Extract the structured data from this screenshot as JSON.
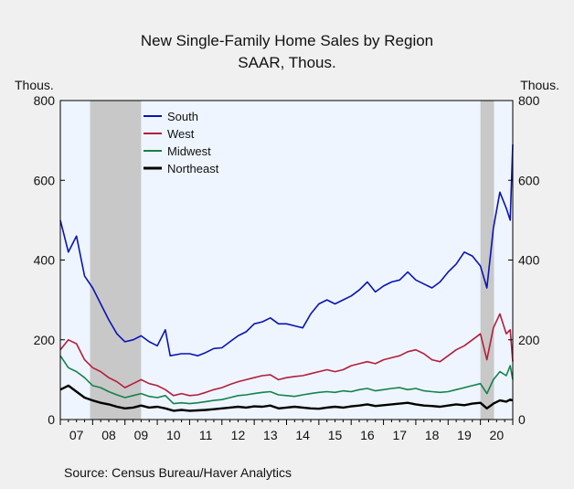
{
  "chart_data": {
    "type": "line",
    "title": "New Single-Family Home Sales by Region",
    "subtitle": "SAAR, Thous.",
    "ylabel_left": "Thous.",
    "ylabel_right": "Thous.",
    "source": "Source:  Census Bureau/Haver Analytics",
    "ylim": [
      0,
      800
    ],
    "yticks": [
      0,
      200,
      400,
      600,
      800
    ],
    "xlim": [
      2007.0,
      2021.0
    ],
    "x_tick_labels": [
      "07",
      "08",
      "09",
      "10",
      "11",
      "12",
      "13",
      "14",
      "15",
      "16",
      "17",
      "18",
      "19",
      "20"
    ],
    "recessions": [
      [
        2007.92,
        2009.5
      ],
      [
        2020.0,
        2020.42
      ]
    ],
    "legend_position": "top-left",
    "plot_background": "#eef5ff",
    "recession_color": "#c8c8c8",
    "series": [
      {
        "name": "South",
        "color": "#0a14b4",
        "points": [
          [
            2007.0,
            500
          ],
          [
            2007.25,
            420
          ],
          [
            2007.5,
            460
          ],
          [
            2007.75,
            360
          ],
          [
            2008.0,
            330
          ],
          [
            2008.25,
            290
          ],
          [
            2008.5,
            250
          ],
          [
            2008.75,
            215
          ],
          [
            2009.0,
            195
          ],
          [
            2009.25,
            200
          ],
          [
            2009.5,
            210
          ],
          [
            2009.75,
            195
          ],
          [
            2010.0,
            185
          ],
          [
            2010.25,
            225
          ],
          [
            2010.4,
            160
          ],
          [
            2010.75,
            165
          ],
          [
            2011.0,
            165
          ],
          [
            2011.25,
            160
          ],
          [
            2011.5,
            168
          ],
          [
            2011.75,
            178
          ],
          [
            2012.0,
            180
          ],
          [
            2012.25,
            195
          ],
          [
            2012.5,
            210
          ],
          [
            2012.75,
            220
          ],
          [
            2013.0,
            240
          ],
          [
            2013.25,
            245
          ],
          [
            2013.5,
            255
          ],
          [
            2013.75,
            240
          ],
          [
            2014.0,
            240
          ],
          [
            2014.25,
            235
          ],
          [
            2014.5,
            230
          ],
          [
            2014.75,
            265
          ],
          [
            2015.0,
            290
          ],
          [
            2015.25,
            300
          ],
          [
            2015.5,
            290
          ],
          [
            2015.75,
            300
          ],
          [
            2016.0,
            310
          ],
          [
            2016.25,
            325
          ],
          [
            2016.5,
            345
          ],
          [
            2016.75,
            320
          ],
          [
            2017.0,
            335
          ],
          [
            2017.25,
            345
          ],
          [
            2017.5,
            350
          ],
          [
            2017.75,
            370
          ],
          [
            2018.0,
            350
          ],
          [
            2018.25,
            340
          ],
          [
            2018.5,
            330
          ],
          [
            2018.75,
            345
          ],
          [
            2019.0,
            370
          ],
          [
            2019.25,
            390
          ],
          [
            2019.5,
            420
          ],
          [
            2019.75,
            410
          ],
          [
            2020.0,
            385
          ],
          [
            2020.2,
            330
          ],
          [
            2020.4,
            480
          ],
          [
            2020.6,
            570
          ],
          [
            2020.8,
            530
          ],
          [
            2020.92,
            500
          ],
          [
            2021.0,
            690
          ]
        ]
      },
      {
        "name": "West",
        "color": "#b41e3c",
        "points": [
          [
            2007.0,
            175
          ],
          [
            2007.25,
            200
          ],
          [
            2007.5,
            190
          ],
          [
            2007.75,
            150
          ],
          [
            2008.0,
            130
          ],
          [
            2008.25,
            120
          ],
          [
            2008.5,
            105
          ],
          [
            2008.75,
            95
          ],
          [
            2009.0,
            80
          ],
          [
            2009.25,
            90
          ],
          [
            2009.5,
            100
          ],
          [
            2009.75,
            90
          ],
          [
            2010.0,
            85
          ],
          [
            2010.25,
            75
          ],
          [
            2010.5,
            60
          ],
          [
            2010.75,
            65
          ],
          [
            2011.0,
            60
          ],
          [
            2011.25,
            62
          ],
          [
            2011.5,
            68
          ],
          [
            2011.75,
            75
          ],
          [
            2012.0,
            80
          ],
          [
            2012.25,
            88
          ],
          [
            2012.5,
            95
          ],
          [
            2012.75,
            100
          ],
          [
            2013.0,
            105
          ],
          [
            2013.25,
            110
          ],
          [
            2013.5,
            112
          ],
          [
            2013.75,
            100
          ],
          [
            2014.0,
            105
          ],
          [
            2014.25,
            108
          ],
          [
            2014.5,
            110
          ],
          [
            2014.75,
            115
          ],
          [
            2015.0,
            120
          ],
          [
            2015.25,
            125
          ],
          [
            2015.5,
            120
          ],
          [
            2015.75,
            125
          ],
          [
            2016.0,
            135
          ],
          [
            2016.25,
            140
          ],
          [
            2016.5,
            145
          ],
          [
            2016.75,
            140
          ],
          [
            2017.0,
            150
          ],
          [
            2017.25,
            155
          ],
          [
            2017.5,
            160
          ],
          [
            2017.75,
            170
          ],
          [
            2018.0,
            175
          ],
          [
            2018.25,
            165
          ],
          [
            2018.5,
            150
          ],
          [
            2018.75,
            145
          ],
          [
            2019.0,
            160
          ],
          [
            2019.25,
            175
          ],
          [
            2019.5,
            185
          ],
          [
            2019.75,
            200
          ],
          [
            2020.0,
            215
          ],
          [
            2020.2,
            150
          ],
          [
            2020.4,
            230
          ],
          [
            2020.6,
            265
          ],
          [
            2020.8,
            215
          ],
          [
            2020.92,
            225
          ],
          [
            2021.0,
            145
          ]
        ]
      },
      {
        "name": "Midwest",
        "color": "#14824b",
        "points": [
          [
            2007.0,
            160
          ],
          [
            2007.25,
            130
          ],
          [
            2007.5,
            120
          ],
          [
            2007.75,
            105
          ],
          [
            2008.0,
            85
          ],
          [
            2008.25,
            80
          ],
          [
            2008.5,
            70
          ],
          [
            2008.75,
            62
          ],
          [
            2009.0,
            55
          ],
          [
            2009.25,
            60
          ],
          [
            2009.5,
            65
          ],
          [
            2009.75,
            58
          ],
          [
            2010.0,
            55
          ],
          [
            2010.25,
            60
          ],
          [
            2010.5,
            40
          ],
          [
            2010.75,
            42
          ],
          [
            2011.0,
            40
          ],
          [
            2011.25,
            42
          ],
          [
            2011.5,
            45
          ],
          [
            2011.75,
            48
          ],
          [
            2012.0,
            50
          ],
          [
            2012.25,
            55
          ],
          [
            2012.5,
            60
          ],
          [
            2012.75,
            62
          ],
          [
            2013.0,
            65
          ],
          [
            2013.25,
            68
          ],
          [
            2013.5,
            70
          ],
          [
            2013.75,
            62
          ],
          [
            2014.0,
            60
          ],
          [
            2014.25,
            58
          ],
          [
            2014.5,
            62
          ],
          [
            2014.75,
            65
          ],
          [
            2015.0,
            68
          ],
          [
            2015.25,
            70
          ],
          [
            2015.5,
            68
          ],
          [
            2015.75,
            72
          ],
          [
            2016.0,
            70
          ],
          [
            2016.25,
            75
          ],
          [
            2016.5,
            78
          ],
          [
            2016.75,
            72
          ],
          [
            2017.0,
            75
          ],
          [
            2017.25,
            78
          ],
          [
            2017.5,
            80
          ],
          [
            2017.75,
            75
          ],
          [
            2018.0,
            78
          ],
          [
            2018.25,
            72
          ],
          [
            2018.5,
            70
          ],
          [
            2018.75,
            68
          ],
          [
            2019.0,
            70
          ],
          [
            2019.25,
            75
          ],
          [
            2019.5,
            80
          ],
          [
            2019.75,
            85
          ],
          [
            2020.0,
            90
          ],
          [
            2020.2,
            65
          ],
          [
            2020.4,
            100
          ],
          [
            2020.6,
            120
          ],
          [
            2020.8,
            110
          ],
          [
            2020.92,
            135
          ],
          [
            2021.0,
            100
          ]
        ]
      },
      {
        "name": "Northeast",
        "color": "#000000",
        "points": [
          [
            2007.0,
            75
          ],
          [
            2007.25,
            85
          ],
          [
            2007.5,
            70
          ],
          [
            2007.75,
            55
          ],
          [
            2008.0,
            48
          ],
          [
            2008.25,
            42
          ],
          [
            2008.5,
            38
          ],
          [
            2008.75,
            32
          ],
          [
            2009.0,
            28
          ],
          [
            2009.25,
            30
          ],
          [
            2009.5,
            35
          ],
          [
            2009.75,
            30
          ],
          [
            2010.0,
            32
          ],
          [
            2010.25,
            28
          ],
          [
            2010.5,
            22
          ],
          [
            2010.75,
            24
          ],
          [
            2011.0,
            22
          ],
          [
            2011.25,
            23
          ],
          [
            2011.5,
            24
          ],
          [
            2011.75,
            26
          ],
          [
            2012.0,
            28
          ],
          [
            2012.25,
            30
          ],
          [
            2012.5,
            32
          ],
          [
            2012.75,
            30
          ],
          [
            2013.0,
            33
          ],
          [
            2013.25,
            32
          ],
          [
            2013.5,
            35
          ],
          [
            2013.75,
            28
          ],
          [
            2014.0,
            30
          ],
          [
            2014.25,
            32
          ],
          [
            2014.5,
            30
          ],
          [
            2014.75,
            28
          ],
          [
            2015.0,
            27
          ],
          [
            2015.25,
            30
          ],
          [
            2015.5,
            32
          ],
          [
            2015.75,
            30
          ],
          [
            2016.0,
            33
          ],
          [
            2016.25,
            35
          ],
          [
            2016.5,
            38
          ],
          [
            2016.75,
            34
          ],
          [
            2017.0,
            36
          ],
          [
            2017.25,
            38
          ],
          [
            2017.5,
            40
          ],
          [
            2017.75,
            42
          ],
          [
            2018.0,
            38
          ],
          [
            2018.25,
            35
          ],
          [
            2018.5,
            34
          ],
          [
            2018.75,
            32
          ],
          [
            2019.0,
            35
          ],
          [
            2019.25,
            38
          ],
          [
            2019.5,
            36
          ],
          [
            2019.75,
            40
          ],
          [
            2020.0,
            42
          ],
          [
            2020.2,
            28
          ],
          [
            2020.4,
            40
          ],
          [
            2020.6,
            48
          ],
          [
            2020.8,
            45
          ],
          [
            2020.92,
            50
          ],
          [
            2021.0,
            48
          ]
        ]
      }
    ]
  }
}
